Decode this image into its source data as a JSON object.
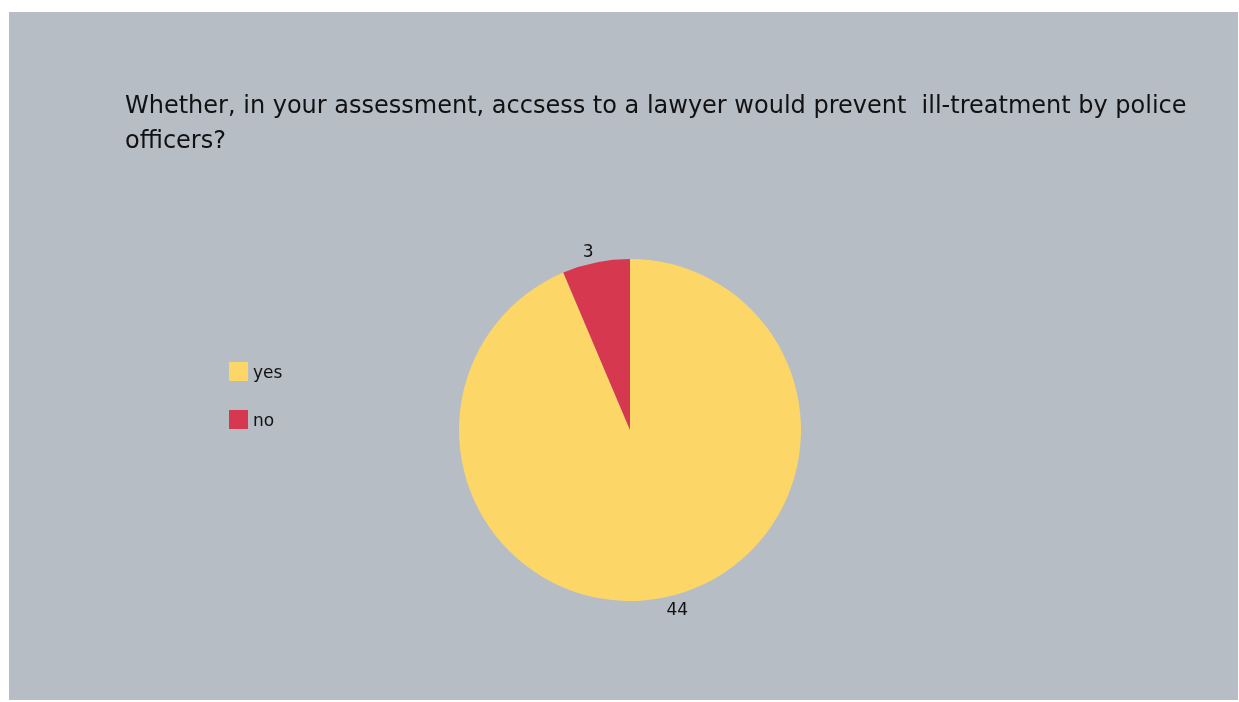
{
  "chart_data": {
    "type": "pie",
    "title": "Whether, in your assessment, accsess to a lawyer would prevent  ill-treatment by police officers?",
    "categories": [
      "yes",
      "no"
    ],
    "values": [
      44,
      3
    ],
    "colors": [
      "#fcd667",
      "#d6394f"
    ],
    "data_labels": true,
    "legend": "left"
  }
}
